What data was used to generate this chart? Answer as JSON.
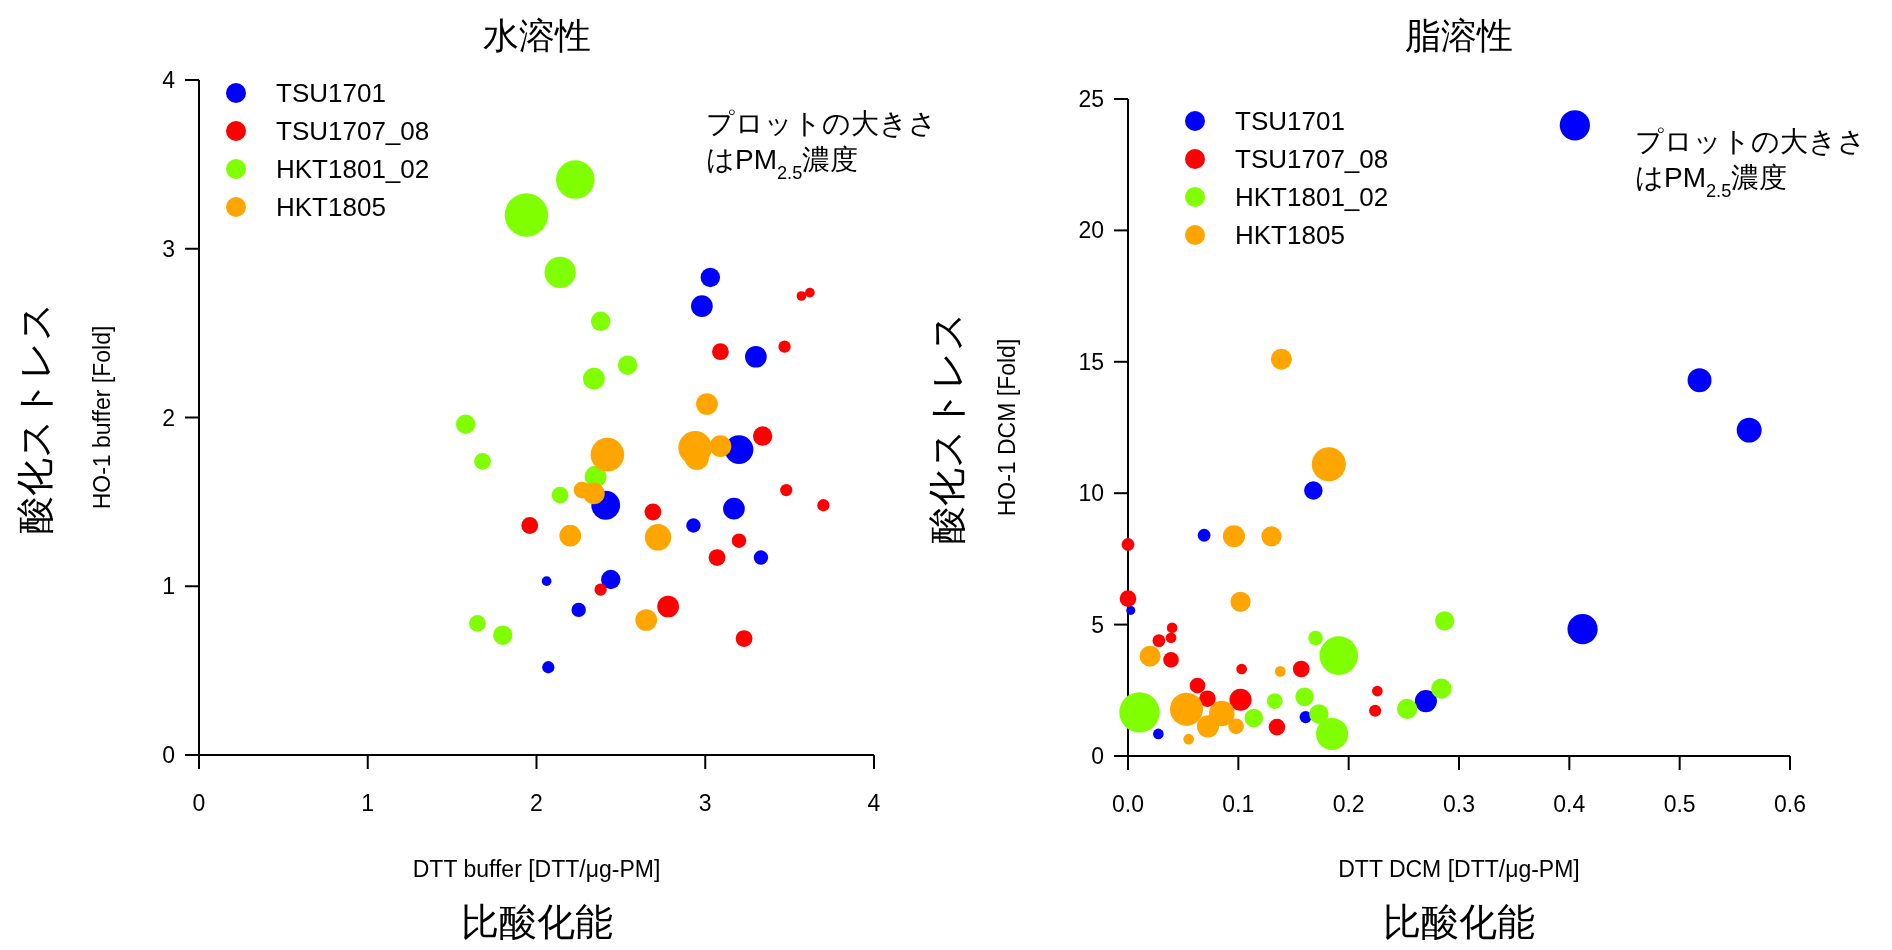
{
  "chart_data": [
    {
      "type": "bubble",
      "title": "水溶性",
      "xlabel": "DTT buffer [DTT/μg-PM]",
      "ylabel": "HO-1 buffer [Fold]",
      "annotations": [
        "プロットの大きさ",
        "はPM$_{2.5}$濃度",
        "比酸化能",
        "酸化ストレス"
      ],
      "xlim": [
        0,
        4
      ],
      "ylim": [
        0,
        4
      ],
      "xticks": [
        0,
        1,
        2,
        3,
        4
      ],
      "yticks": [
        0,
        1,
        2,
        3,
        4
      ],
      "legend": "top left",
      "marker": "circle",
      "grid": false,
      "series": [
        {
          "name": "TSU1701",
          "color": "#0000ff",
          "x": [
            3.03,
            2.98,
            3.3,
            3.2,
            2.41,
            3.17,
            2.93,
            3.33,
            2.44,
            2.06,
            2.25,
            2.07
          ],
          "values": [
            2.83,
            2.66,
            2.36,
            1.81,
            1.48,
            1.46,
            1.36,
            1.17,
            1.04,
            1.03,
            0.86,
            0.52
          ],
          "sizes": [
            0.2,
            0.25,
            0.25,
            0.44,
            0.44,
            0.25,
            0.11,
            0.11,
            0.2,
            0.05,
            0.11,
            0.08
          ]
        },
        {
          "name": "TSU1707_08",
          "color": "#ff0000",
          "x": [
            3.62,
            3.57,
            3.09,
            3.47,
            3.34,
            1.96,
            2.69,
            3.48,
            3.7,
            3.2,
            3.07,
            2.38,
            2.78,
            3.23
          ],
          "values": [
            2.74,
            2.72,
            2.39,
            2.42,
            1.89,
            1.36,
            1.44,
            1.57,
            1.48,
            1.27,
            1.17,
            0.98,
            0.88,
            0.69
          ],
          "sizes": [
            0.05,
            0.05,
            0.15,
            0.08,
            0.2,
            0.15,
            0.15,
            0.08,
            0.08,
            0.11,
            0.15,
            0.08,
            0.25,
            0.15
          ]
        },
        {
          "name": "HKT1801_02",
          "color": "#7fff00",
          "x": [
            2.23,
            1.94,
            2.14,
            2.38,
            2.54,
            2.34,
            1.58,
            1.68,
            2.35,
            2.14,
            1.65,
            1.8
          ],
          "values": [
            3.41,
            3.2,
            2.86,
            2.57,
            2.31,
            2.23,
            1.96,
            1.74,
            1.65,
            1.54,
            0.78,
            0.71
          ],
          "sizes": [
            0.79,
            1,
            0.52,
            0.2,
            0.2,
            0.25,
            0.2,
            0.15,
            0.25,
            0.15,
            0.15,
            0.2
          ]
        },
        {
          "name": "HKT1805",
          "color": "#ffa500",
          "x": [
            3.01,
            2.42,
            2.94,
            2.95,
            3.09,
            2.27,
            2.34,
            2.2,
            2.72,
            2.65
          ],
          "values": [
            2.08,
            1.78,
            1.82,
            1.76,
            1.83,
            1.57,
            1.55,
            1.3,
            1.29,
            0.8
          ],
          "sizes": [
            0.25,
            0.6,
            0.6,
            0.31,
            0.25,
            0.15,
            0.25,
            0.25,
            0.37,
            0.25
          ]
        }
      ]
    },
    {
      "type": "bubble",
      "title": "脂溶性",
      "xlabel": "DTT DCM [DTT/μg-PM]",
      "ylabel": "HO-1 DCM [Fold]",
      "annotations": [
        "プロットの大きさ",
        "はPM$_{2.5}$濃度",
        "比酸化能",
        "酸化ストレス"
      ],
      "xlim": [
        0,
        0.6
      ],
      "ylim": [
        0,
        25
      ],
      "xticks": [
        {
          "value": 0,
          "label": "0.0"
        },
        0.1,
        0.2,
        0.3,
        0.4,
        0.5,
        0.6
      ],
      "yticks": [
        0,
        5,
        10,
        15,
        20,
        25
      ],
      "legend": "top left",
      "marker": "circle",
      "grid": false,
      "series": [
        {
          "name": "TSU1701",
          "color": "#0000ff",
          "x": [
            0.405,
            0.518,
            0.563,
            0.412,
            0.168,
            0.069,
            0.27,
            0.161,
            0.0275,
            0.0025
          ],
          "values": [
            24.0,
            14.3,
            12.4,
            4.83,
            10.1,
            8.4,
            2.09,
            1.48,
            0.84,
            5.54
          ],
          "sizes": [
            0.56,
            0.35,
            0.38,
            0.56,
            0.21,
            0.1,
            0.3,
            0.09,
            0.07,
            0.05
          ]
        },
        {
          "name": "TSU1707_08",
          "color": "#ff0000",
          "x": [
            0,
            0,
            0.04,
            0.028,
            0.039,
            0.039,
            0.063,
            0.072,
            0.102,
            0.103,
            0.157,
            0.135,
            0.226,
            0.224
          ],
          "values": [
            8.05,
            5.99,
            4.88,
            4.39,
            4.5,
            3.66,
            2.68,
            2.18,
            2.14,
            3.31,
            3.31,
            1.1,
            2.47,
            1.72
          ],
          "sizes": [
            0.1,
            0.17,
            0.07,
            0.1,
            0.07,
            0.15,
            0.15,
            0.17,
            0.3,
            0.07,
            0.17,
            0.17,
            0.07,
            0.09
          ]
        },
        {
          "name": "HKT1801_02",
          "color": "#7fff00",
          "x": [
            0.0104,
            0.191,
            0.185,
            0.287,
            0.284,
            0.253,
            0.17,
            0.16,
            0.173,
            0.133,
            0.114
          ],
          "values": [
            1.66,
            3.82,
            0.84,
            5.14,
            2.56,
            1.79,
            4.49,
            2.25,
            1.6,
            2.09,
            1.45
          ],
          "sizes": [
            1,
            0.91,
            0.63,
            0.23,
            0.25,
            0.25,
            0.13,
            0.21,
            0.23,
            0.15,
            0.21
          ]
        },
        {
          "name": "HKT1805",
          "color": "#ffa500",
          "x": [
            0.139,
            0.182,
            0.096,
            0.13,
            0.102,
            0.02,
            0.053,
            0.085,
            0.0725,
            0.098,
            0.138,
            0.055
          ],
          "values": [
            15.1,
            11.1,
            8.36,
            8.36,
            5.87,
            3.8,
            1.78,
            1.62,
            1.13,
            1.13,
            3.22,
            0.64
          ],
          "sizes": [
            0.27,
            0.71,
            0.3,
            0.25,
            0.25,
            0.27,
            0.67,
            0.4,
            0.3,
            0.15,
            0.07,
            0.07
          ]
        }
      ]
    }
  ]
}
